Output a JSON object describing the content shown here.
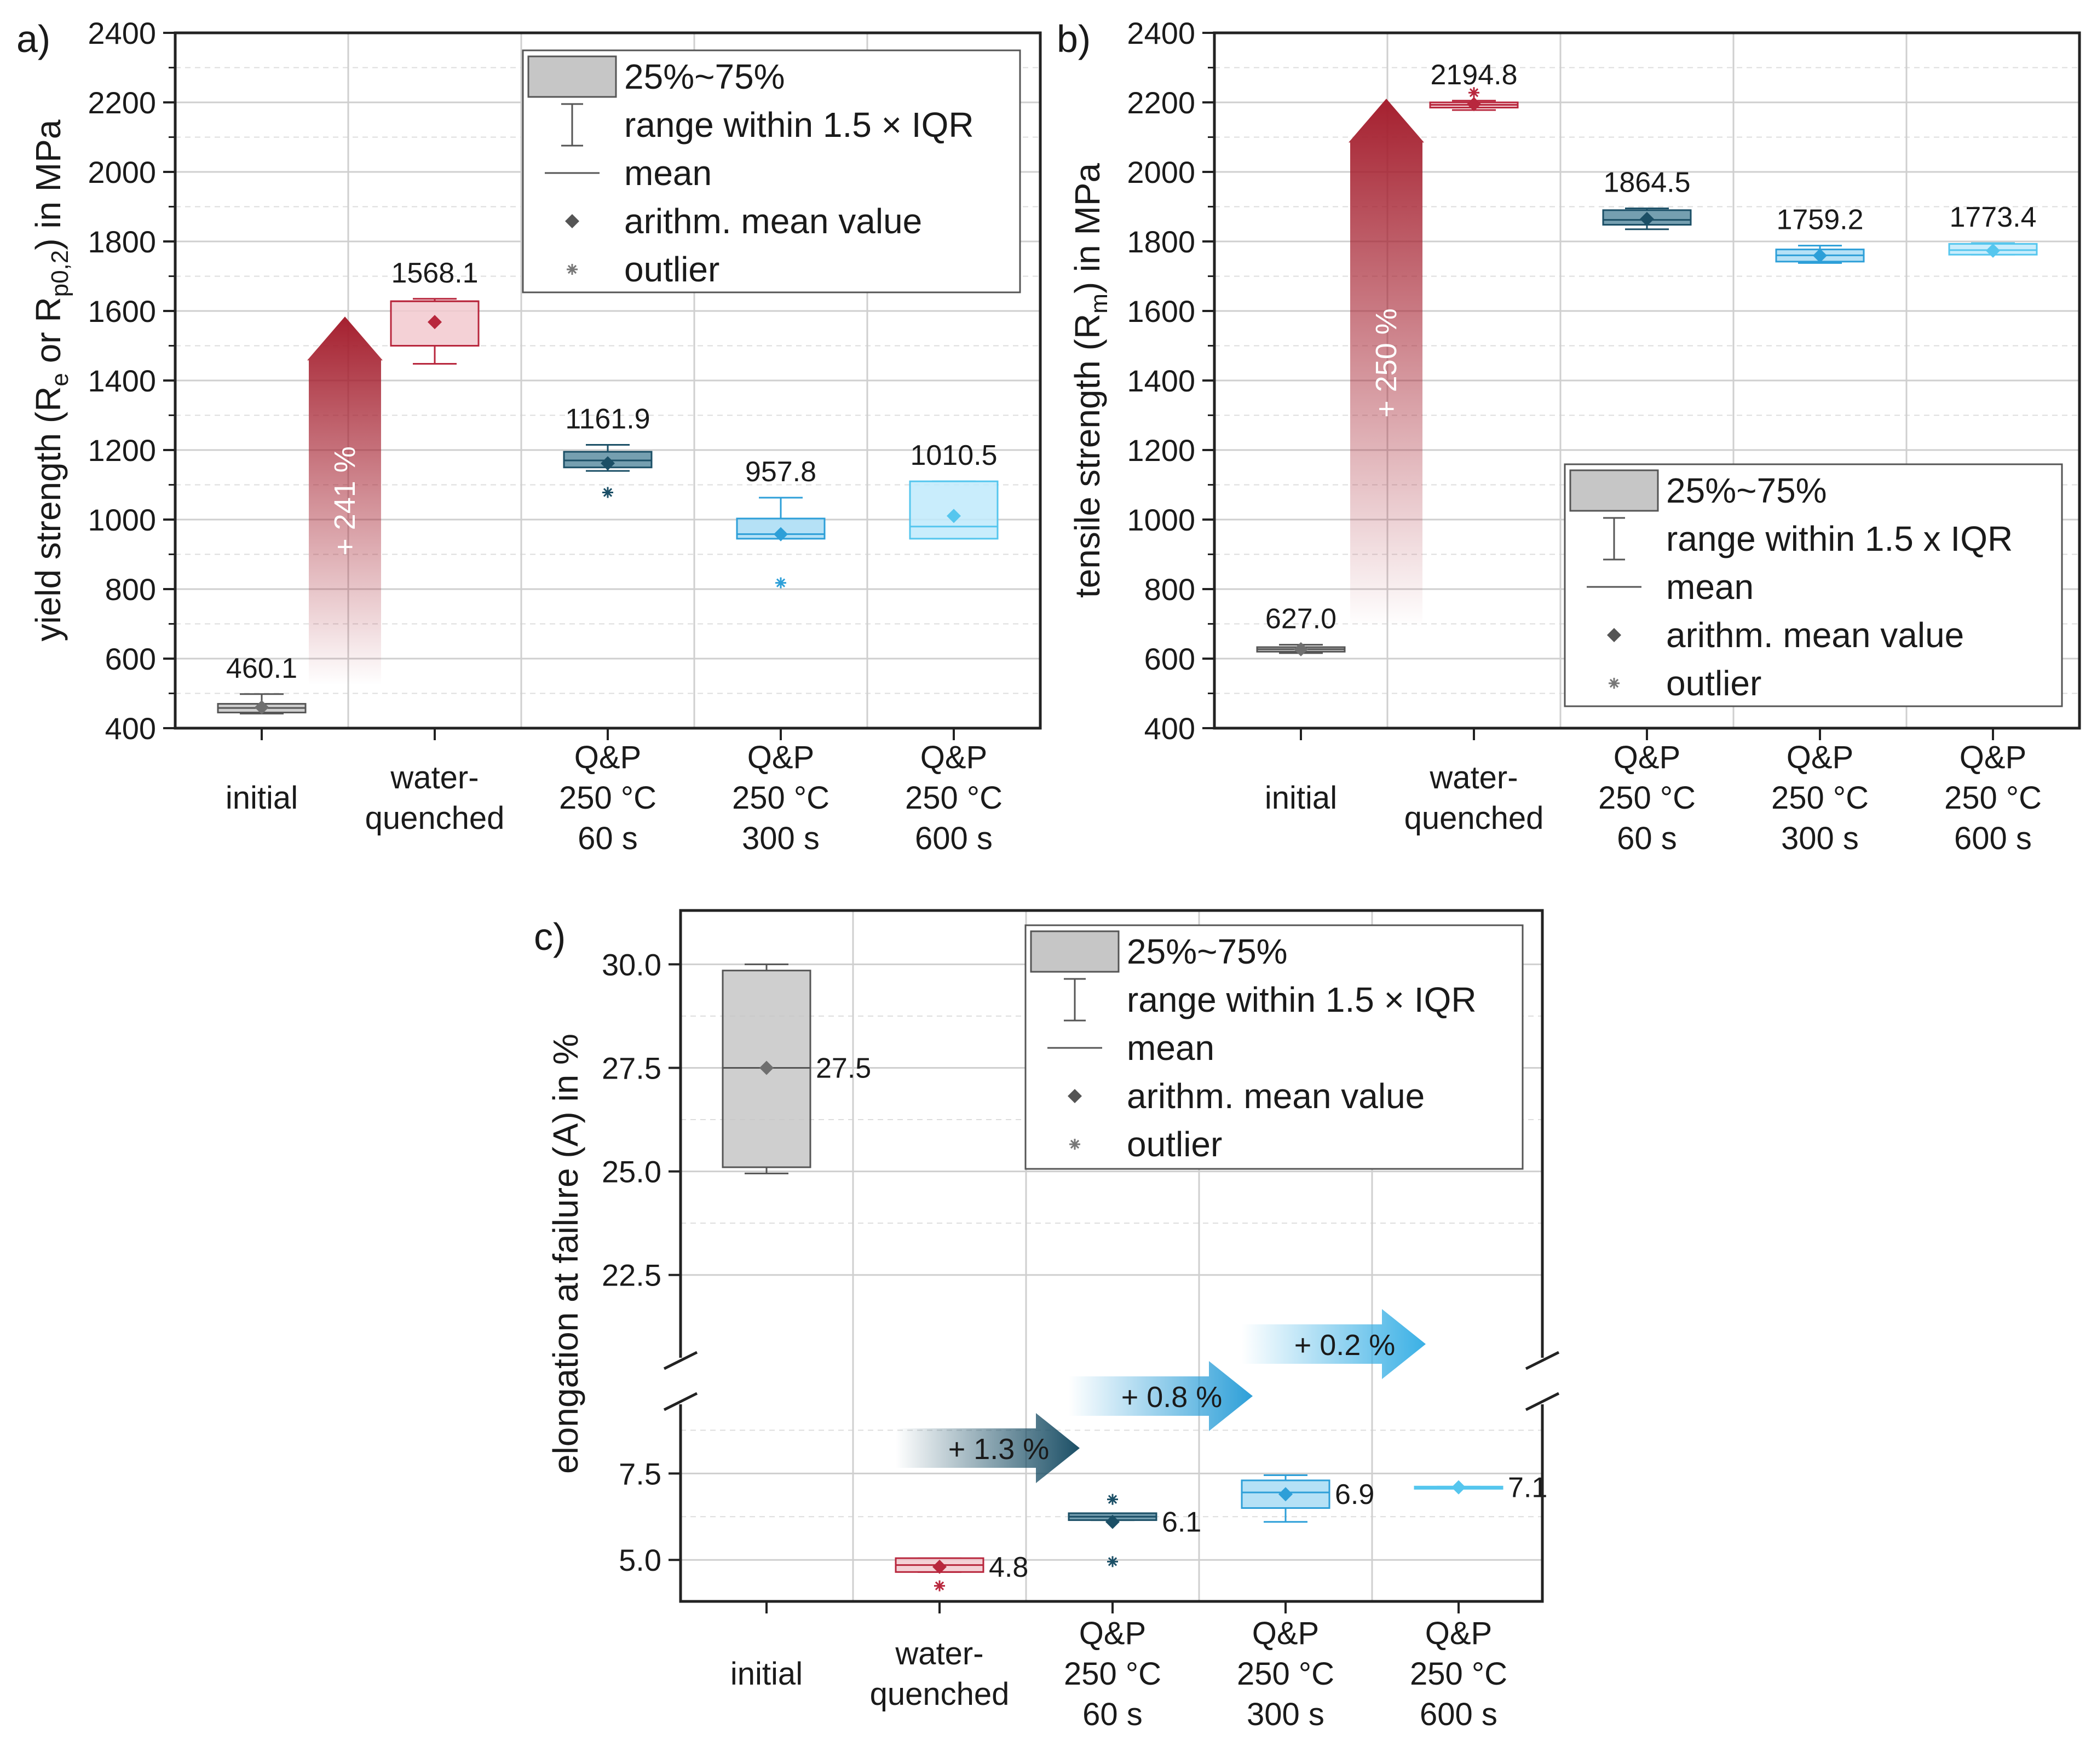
{
  "figure": {
    "panel_labels": [
      "a)",
      "b)",
      "c)"
    ]
  },
  "x_categories": [
    [
      "initial"
    ],
    [
      "water-",
      "quenched"
    ],
    [
      "Q&P",
      "250 °C",
      "60 s"
    ],
    [
      "Q&P",
      "250 °C",
      "300 s"
    ],
    [
      "Q&P",
      "250 °C",
      "600 s"
    ]
  ],
  "colors": {
    "initial": "#6f6f6f",
    "water_quenched": "#b8273d",
    "qp60": "#1b4f66",
    "qp300": "#2d9fd8",
    "qp600": "#55c6ee",
    "arrow_red": "#a5202f",
    "grid": "#cfcfcf"
  },
  "chart_data": [
    {
      "panel": "a)",
      "type": "box",
      "ylabel_parts": [
        "yield strength (R",
        "e",
        " or R",
        "p0,2",
        ") in MPa"
      ],
      "ylim": [
        400,
        2400
      ],
      "yticks": [
        400,
        600,
        800,
        1000,
        1200,
        1400,
        1600,
        1800,
        2000,
        2200,
        2400
      ],
      "legend": {
        "position": "top-right",
        "entries": [
          "25%~75%",
          "range within 1.5 × IQR",
          "mean",
          "arithm. mean value",
          "outlier"
        ]
      },
      "boxes": [
        {
          "q1": 445,
          "q3": 470,
          "median": 458,
          "whisker_low": 442,
          "whisker_high": 498,
          "mean": 460.1,
          "label": "460.1",
          "outliers": []
        },
        {
          "q1": 1500,
          "q3": 1628,
          "median": 1628,
          "whisker_low": 1448,
          "whisker_high": 1635,
          "mean": 1568.1,
          "label": "1568.1",
          "outliers": []
        },
        {
          "q1": 1150,
          "q3": 1195,
          "median": 1170,
          "whisker_low": 1140,
          "whisker_high": 1215,
          "mean": 1161.9,
          "label": "1161.9",
          "outliers": [
            1078
          ]
        },
        {
          "q1": 945,
          "q3": 1003,
          "median": 958,
          "whisker_low": 945,
          "whisker_high": 1063,
          "mean": 957.8,
          "label": "957.8",
          "outliers": [
            818
          ]
        },
        {
          "q1": 945,
          "q3": 1110,
          "median": 980,
          "whisker_low": 945,
          "whisker_high": 1110,
          "mean": 1010.5,
          "label": "1010.5",
          "outliers": []
        }
      ],
      "annotation": {
        "text": "+ 241 %",
        "from": 460.1,
        "to": 1568.1
      }
    },
    {
      "panel": "b)",
      "type": "box",
      "ylabel_parts": [
        "tensile strength (R",
        "m",
        ") in MPa"
      ],
      "ylim": [
        400,
        2400
      ],
      "yticks": [
        400,
        600,
        800,
        1000,
        1200,
        1400,
        1600,
        1800,
        2000,
        2200,
        2400
      ],
      "legend": {
        "position": "bottom-right",
        "entries": [
          "25%~75%",
          "range within 1.5 x IQR",
          "mean",
          "arithm. mean value",
          "outlier"
        ]
      },
      "boxes": [
        {
          "q1": 620,
          "q3": 633,
          "median": 627,
          "whisker_low": 616,
          "whisker_high": 640,
          "mean": 627.0,
          "label": "627.0",
          "outliers": []
        },
        {
          "q1": 2185,
          "q3": 2200,
          "median": 2193,
          "whisker_low": 2178,
          "whisker_high": 2205,
          "mean": 2194.8,
          "label": "2194.8",
          "outliers": [
            2228
          ]
        },
        {
          "q1": 1848,
          "q3": 1890,
          "median": 1862,
          "whisker_low": 1835,
          "whisker_high": 1895,
          "mean": 1864.5,
          "label": "1864.5",
          "outliers": []
        },
        {
          "q1": 1742,
          "q3": 1777,
          "median": 1760,
          "whisker_low": 1738,
          "whisker_high": 1788,
          "mean": 1759.2,
          "label": "1759.2",
          "outliers": []
        },
        {
          "q1": 1762,
          "q3": 1793,
          "median": 1775,
          "whisker_low": 1762,
          "whisker_high": 1795,
          "mean": 1773.4,
          "label": "1773.4",
          "outliers": []
        }
      ],
      "annotation": {
        "text": "+ 250 %",
        "from": 627.0,
        "to": 2194.8
      }
    },
    {
      "panel": "c)",
      "type": "box",
      "ylabel": "elongation at failure (A) in %",
      "ylim": [
        3.8,
        31.3
      ],
      "axis_break": [
        9.5,
        20.5
      ],
      "yticks": [
        5.0,
        7.5,
        22.5,
        25.0,
        27.5,
        30.0
      ],
      "ytick_labels": [
        "5.0",
        "7.5",
        "22.5",
        "25.0",
        "27.5",
        "30.0"
      ],
      "legend": {
        "position": "top-right",
        "entries": [
          "25%~75%",
          "range within 1.5 × IQR",
          "mean",
          "arithm. mean value",
          "outlier"
        ]
      },
      "boxes": [
        {
          "q1": 25.1,
          "q3": 29.85,
          "median": 27.5,
          "whisker_low": 24.95,
          "whisker_high": 30.0,
          "mean": 27.5,
          "label": "27.5",
          "outliers": []
        },
        {
          "q1": 4.65,
          "q3": 5.05,
          "median": 4.85,
          "whisker_low": 4.65,
          "whisker_high": 5.05,
          "mean": 4.8,
          "label": "4.8",
          "outliers": [
            4.25
          ]
        },
        {
          "q1": 6.15,
          "q3": 6.35,
          "median": 6.25,
          "whisker_low": 6.15,
          "whisker_high": 6.35,
          "mean": 6.1,
          "label": "6.1",
          "outliers": [
            6.75,
            4.95
          ]
        },
        {
          "q1": 6.5,
          "q3": 7.3,
          "median": 6.95,
          "whisker_low": 6.1,
          "whisker_high": 7.45,
          "mean": 6.9,
          "label": "6.9",
          "outliers": []
        },
        {
          "q1": 7.08,
          "q3": 7.12,
          "median": 7.1,
          "whisker_low": 7.08,
          "whisker_high": 7.12,
          "mean": 7.1,
          "label": "7.1",
          "outliers": []
        }
      ],
      "step_arrows": [
        {
          "text": "+ 1.3 %",
          "between": [
            1,
            2
          ]
        },
        {
          "text": "+ 0.8 %",
          "between": [
            2,
            3
          ]
        },
        {
          "text": "+ 0.2 %",
          "between": [
            3,
            4
          ]
        }
      ]
    }
  ]
}
